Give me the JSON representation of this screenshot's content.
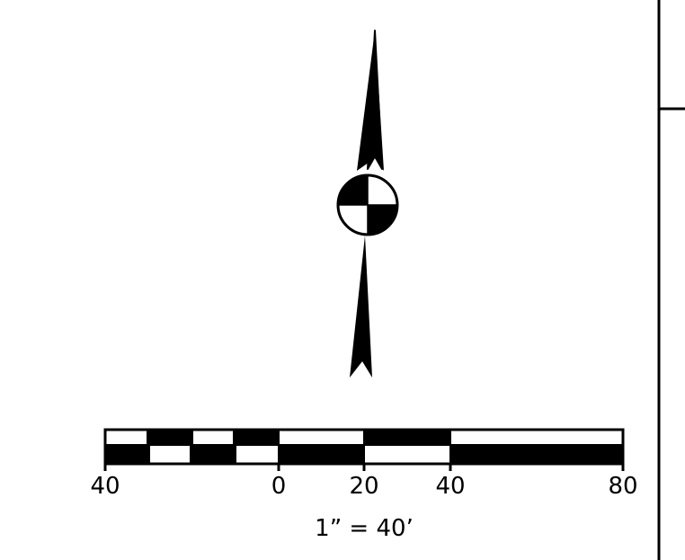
{
  "scale_bar": {
    "tick_labels": [
      "40",
      "0",
      "20",
      "40",
      "80"
    ],
    "ratio_label": "1” = 40’"
  },
  "north_arrow": {
    "icon": "north-arrow-icon"
  },
  "colors": {
    "ink": "#000000",
    "paper": "#ffffff"
  }
}
